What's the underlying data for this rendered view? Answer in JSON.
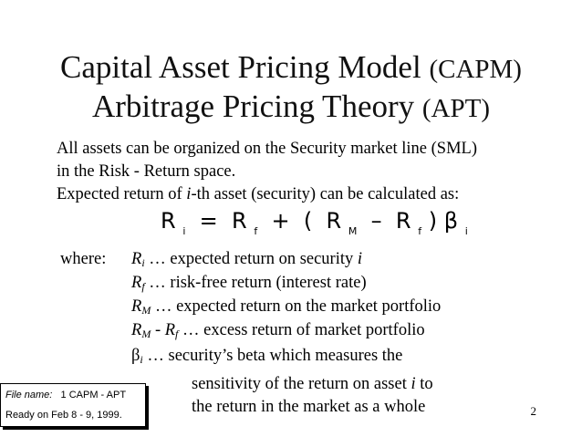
{
  "slide": {
    "title_line1_main": "Capital Asset Pricing Model",
    "title_line1_abbr": "(CAPM)",
    "title_line2_main": "Arbitrage Pricing Theory",
    "title_line2_abbr": "(APT)",
    "intro": {
      "line1": "All assets can be organized on the Security market line (SML)",
      "line2": "in the Risk - Return space.",
      "line3_pre": "Expected return of ",
      "line3_italic": "i",
      "line3_post": "-th asset (security) can be calculated as:"
    },
    "formula": {
      "R": "R",
      "sub_i": "i",
      "eq": "=",
      "sub_f": "f",
      "plus": "+",
      "lparen": "(",
      "sub_M": "M",
      "minus": "–",
      "rparen": ")",
      "beta": "β"
    },
    "where_label": "where:",
    "definitions": {
      "ri_sym": "R",
      "ri_sub": "i",
      "ri_text": " …  expected return on security ",
      "ri_var": "i",
      "rf_sym": "R",
      "rf_sub": "f",
      "rf_text": " …  risk-free return (interest rate)",
      "rm_sym": "R",
      "rm_sub": "M",
      "rm_text": " … expected return on the market portfolio",
      "ex_sym1": "R",
      "ex_sub1": "M",
      "ex_mid": " - ",
      "ex_sym2": "R",
      "ex_sub2": "f",
      "ex_text": " … excess return of market portfolio",
      "beta_sym": "β",
      "beta_sub": "i",
      "beta_text": " …   security’s beta which measures the",
      "beta_line2_pre": "sensitivity of the return on asset ",
      "beta_line2_var": "i",
      "beta_line2_post": " to",
      "beta_line3": "the return in the market as a whole"
    },
    "info_box": {
      "file_label": "File name:",
      "file_value": "1 CAPM - APT",
      "ready": "Ready on Feb 8 - 9, 1999."
    },
    "slide_number": "2"
  }
}
